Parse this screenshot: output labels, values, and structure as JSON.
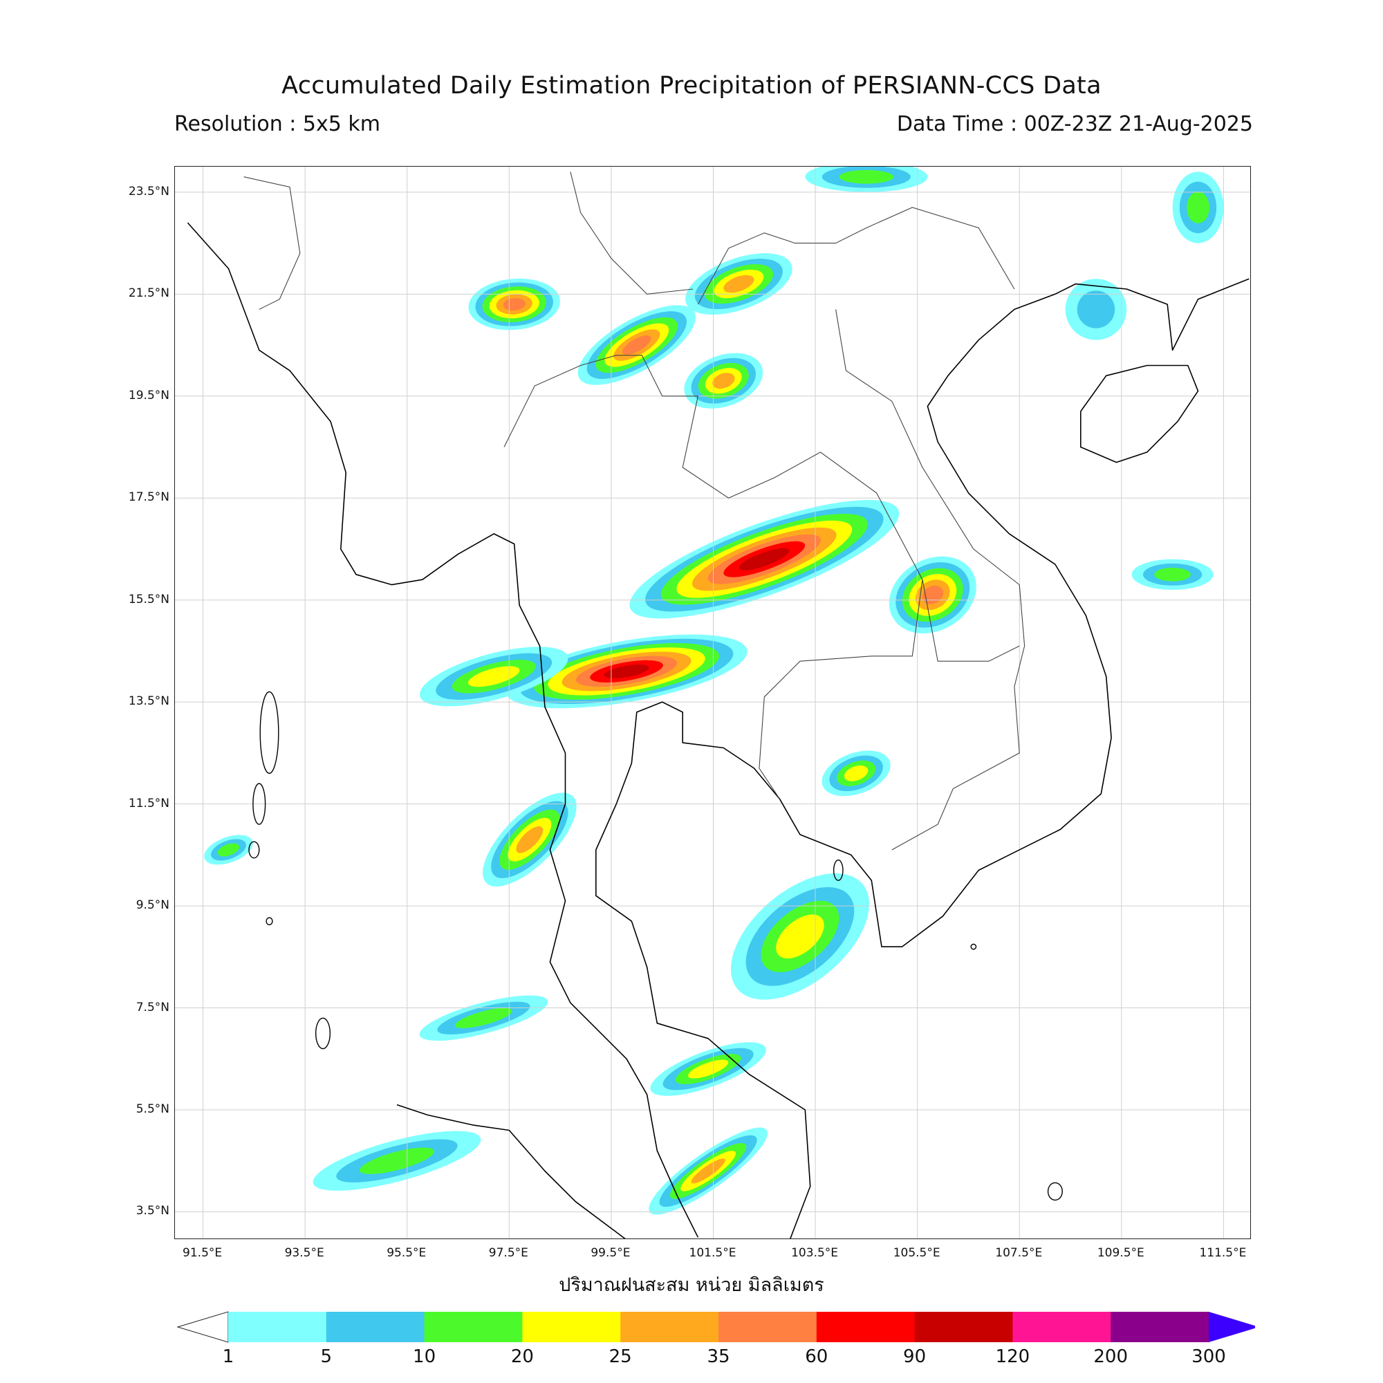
{
  "title": "Accumulated Daily Estimation Precipitation of PERSIANN-CCS Data",
  "resolution": "Resolution : 5x5 km",
  "data_time": "Data Time : 00Z-23Z 21-Aug-2025",
  "unit_label": "ปริมาณฝนสะสม หน่วย มิลลิเมตร",
  "map": {
    "lon_range": [
      90.95,
      112.05
    ],
    "lat_range": [
      2.95,
      24.0
    ],
    "lat_ticks": [
      {
        "value": 23.5,
        "label": "23.5°N"
      },
      {
        "value": 21.5,
        "label": "21.5°N"
      },
      {
        "value": 19.5,
        "label": "19.5°N"
      },
      {
        "value": 17.5,
        "label": "17.5°N"
      },
      {
        "value": 15.5,
        "label": "15.5°N"
      },
      {
        "value": 13.5,
        "label": "13.5°N"
      },
      {
        "value": 11.5,
        "label": "11.5°N"
      },
      {
        "value": 9.5,
        "label": "9.5°N"
      },
      {
        "value": 7.5,
        "label": "7.5°N"
      },
      {
        "value": 5.5,
        "label": "5.5°N"
      },
      {
        "value": 3.5,
        "label": "3.5°N"
      }
    ],
    "lon_ticks": [
      {
        "value": 91.5,
        "label": "91.5°E"
      },
      {
        "value": 93.5,
        "label": "93.5°E"
      },
      {
        "value": 95.5,
        "label": "95.5°E"
      },
      {
        "value": 97.5,
        "label": "97.5°E"
      },
      {
        "value": 99.5,
        "label": "99.5°E"
      },
      {
        "value": 101.5,
        "label": "101.5°E"
      },
      {
        "value": 103.5,
        "label": "103.5°E"
      },
      {
        "value": 105.5,
        "label": "105.5°E"
      },
      {
        "value": 107.5,
        "label": "107.5°E"
      },
      {
        "value": 109.5,
        "label": "109.5°E"
      },
      {
        "value": 111.5,
        "label": "111.5°E"
      }
    ],
    "gridlines": true
  },
  "colorbar": {
    "levels": [
      "1",
      "5",
      "10",
      "20",
      "25",
      "35",
      "60",
      "90",
      "120",
      "200",
      "300"
    ],
    "colors": [
      "#80ffff",
      "#40c8ee",
      "#4cfa2c",
      "#ffff00",
      "#ffa91f",
      "#ff8040",
      "#ff0000",
      "#c80000",
      "#ff1493",
      "#8b008b"
    ],
    "under_color": "#ffffff",
    "over_color": "#3c00ff"
  },
  "rain_areas": [
    {
      "name": "northeast-thailand-band",
      "lon": 102.5,
      "lat": 16.3,
      "rx": 2.8,
      "ry": 0.7,
      "rot": -20,
      "level": 8
    },
    {
      "name": "central-thailand-band",
      "lon": 99.8,
      "lat": 14.1,
      "rx": 2.4,
      "ry": 0.6,
      "rot": -10,
      "level": 8
    },
    {
      "name": "laos-south",
      "lon": 105.8,
      "lat": 15.6,
      "rx": 0.9,
      "ry": 0.7,
      "rot": -30,
      "level": 6
    },
    {
      "name": "myanmar-north-a",
      "lon": 100.0,
      "lat": 20.5,
      "rx": 1.3,
      "ry": 0.5,
      "rot": -30,
      "level": 6
    },
    {
      "name": "myanmar-north-b",
      "lon": 97.6,
      "lat": 21.3,
      "rx": 0.9,
      "ry": 0.5,
      "rot": -5,
      "level": 6
    },
    {
      "name": "laos-north",
      "lon": 102.0,
      "lat": 21.7,
      "rx": 1.1,
      "ry": 0.5,
      "rot": -20,
      "level": 5
    },
    {
      "name": "laos-north-b",
      "lon": 101.7,
      "lat": 19.8,
      "rx": 0.8,
      "ry": 0.5,
      "rot": -20,
      "level": 5
    },
    {
      "name": "gulf-thailand",
      "lon": 103.2,
      "lat": 8.9,
      "rx": 1.6,
      "ry": 0.9,
      "rot": -40,
      "level": 4
    },
    {
      "name": "andaman-west",
      "lon": 97.2,
      "lat": 14.0,
      "rx": 1.5,
      "ry": 0.45,
      "rot": -15,
      "level": 4
    },
    {
      "name": "myanmar-south-coast",
      "lon": 97.9,
      "lat": 10.8,
      "rx": 1.2,
      "ry": 0.5,
      "rot": -45,
      "level": 5
    },
    {
      "name": "cambodia-west",
      "lon": 104.3,
      "lat": 12.1,
      "rx": 0.7,
      "ry": 0.4,
      "rot": -20,
      "level": 4
    },
    {
      "name": "malaysia-east-coast",
      "lon": 101.4,
      "lat": 4.3,
      "rx": 1.4,
      "ry": 0.35,
      "rot": -35,
      "level": 5
    },
    {
      "name": "south-thailand-a",
      "lon": 101.4,
      "lat": 6.3,
      "rx": 1.2,
      "ry": 0.35,
      "rot": -20,
      "level": 4
    },
    {
      "name": "sea-south-west",
      "lon": 95.3,
      "lat": 4.5,
      "rx": 1.7,
      "ry": 0.4,
      "rot": -15,
      "level": 3
    },
    {
      "name": "hainan-east",
      "lon": 110.5,
      "lat": 16.0,
      "rx": 0.8,
      "ry": 0.3,
      "rot": 0,
      "level": 3
    },
    {
      "name": "china-northeast",
      "lon": 111.0,
      "lat": 23.2,
      "rx": 0.5,
      "ry": 0.7,
      "rot": 0,
      "level": 3
    },
    {
      "name": "china-top",
      "lon": 104.5,
      "lat": 23.8,
      "rx": 1.2,
      "ry": 0.3,
      "rot": 0,
      "level": 3
    },
    {
      "name": "bay-bengal-east",
      "lon": 92.0,
      "lat": 10.6,
      "rx": 0.5,
      "ry": 0.25,
      "rot": -20,
      "level": 3
    },
    {
      "name": "andaman-south",
      "lon": 97.0,
      "lat": 7.3,
      "rx": 1.3,
      "ry": 0.3,
      "rot": -15,
      "level": 3
    },
    {
      "name": "vietnam-north",
      "lon": 109.0,
      "lat": 21.2,
      "rx": 0.6,
      "ry": 0.6,
      "rot": 0,
      "level": 2
    }
  ],
  "coast_paths": [
    {
      "name": "indochina-coast",
      "points": [
        [
          91.2,
          22.9
        ],
        [
          92.0,
          22.0
        ],
        [
          92.3,
          21.2
        ],
        [
          92.6,
          20.4
        ],
        [
          93.2,
          20.0
        ],
        [
          94.0,
          19.0
        ],
        [
          94.3,
          18.0
        ],
        [
          94.2,
          16.5
        ],
        [
          94.5,
          16.0
        ],
        [
          95.2,
          15.8
        ],
        [
          95.8,
          15.9
        ],
        [
          96.5,
          16.4
        ],
        [
          97.2,
          16.8
        ],
        [
          97.6,
          16.6
        ],
        [
          97.7,
          15.4
        ],
        [
          98.1,
          14.6
        ],
        [
          98.2,
          13.4
        ],
        [
          98.6,
          12.5
        ],
        [
          98.6,
          11.5
        ],
        [
          98.3,
          10.6
        ],
        [
          98.6,
          9.6
        ],
        [
          98.3,
          8.4
        ],
        [
          98.7,
          7.6
        ],
        [
          99.3,
          7.0
        ],
        [
          99.8,
          6.5
        ],
        [
          100.2,
          5.8
        ],
        [
          100.4,
          4.7
        ],
        [
          100.8,
          3.8
        ],
        [
          101.2,
          3.0
        ]
      ]
    },
    {
      "name": "gulf-west-coast",
      "points": [
        [
          103.0,
          2.95
        ],
        [
          103.4,
          4.0
        ],
        [
          103.3,
          5.5
        ],
        [
          102.2,
          6.2
        ],
        [
          101.4,
          6.9
        ],
        [
          100.4,
          7.2
        ],
        [
          100.2,
          8.3
        ],
        [
          99.9,
          9.2
        ],
        [
          99.2,
          9.7
        ],
        [
          99.2,
          10.6
        ],
        [
          99.6,
          11.5
        ],
        [
          99.9,
          12.3
        ],
        [
          100.0,
          13.3
        ],
        [
          100.5,
          13.5
        ],
        [
          100.9,
          13.3
        ],
        [
          100.9,
          12.7
        ],
        [
          101.7,
          12.6
        ],
        [
          102.3,
          12.2
        ],
        [
          102.8,
          11.6
        ],
        [
          103.2,
          10.9
        ],
        [
          104.2,
          10.5
        ],
        [
          104.6,
          10.0
        ],
        [
          104.8,
          8.7
        ],
        [
          105.2,
          8.7
        ],
        [
          106.0,
          9.3
        ],
        [
          106.7,
          10.2
        ],
        [
          107.3,
          10.5
        ],
        [
          108.3,
          11.0
        ],
        [
          109.1,
          11.7
        ],
        [
          109.3,
          12.8
        ],
        [
          109.2,
          14.0
        ],
        [
          108.8,
          15.2
        ],
        [
          108.2,
          16.2
        ],
        [
          107.3,
          16.8
        ],
        [
          106.5,
          17.6
        ],
        [
          105.9,
          18.6
        ],
        [
          105.7,
          19.3
        ],
        [
          106.1,
          19.9
        ],
        [
          106.7,
          20.6
        ],
        [
          107.4,
          21.2
        ],
        [
          108.2,
          21.5
        ],
        [
          108.6,
          21.7
        ],
        [
          109.6,
          21.6
        ],
        [
          110.4,
          21.3
        ],
        [
          110.5,
          20.4
        ],
        [
          111.0,
          21.4
        ],
        [
          112.0,
          21.8
        ]
      ]
    },
    {
      "name": "hainan",
      "points": [
        [
          108.7,
          19.2
        ],
        [
          109.2,
          19.9
        ],
        [
          110.0,
          20.1
        ],
        [
          110.8,
          20.1
        ],
        [
          111.0,
          19.6
        ],
        [
          110.6,
          19.0
        ],
        [
          110.0,
          18.4
        ],
        [
          109.4,
          18.2
        ],
        [
          108.7,
          18.5
        ],
        [
          108.7,
          19.2
        ]
      ]
    },
    {
      "name": "sumatra-tip",
      "points": [
        [
          95.3,
          5.6
        ],
        [
          95.9,
          5.4
        ],
        [
          96.8,
          5.2
        ],
        [
          97.5,
          5.1
        ],
        [
          98.2,
          4.3
        ],
        [
          98.8,
          3.7
        ],
        [
          99.8,
          2.95
        ]
      ]
    }
  ],
  "border_paths": [
    {
      "name": "thailand-outline",
      "points": [
        [
          97.4,
          18.5
        ],
        [
          98.0,
          19.7
        ],
        [
          98.9,
          20.1
        ],
        [
          99.6,
          20.3
        ],
        [
          100.1,
          20.3
        ],
        [
          100.5,
          19.5
        ],
        [
          101.2,
          19.5
        ],
        [
          100.9,
          18.1
        ],
        [
          101.8,
          17.5
        ],
        [
          102.7,
          17.9
        ],
        [
          103.6,
          18.4
        ],
        [
          104.7,
          17.6
        ],
        [
          105.6,
          15.9
        ],
        [
          105.4,
          14.4
        ],
        [
          104.6,
          14.4
        ],
        [
          103.2,
          14.3
        ],
        [
          102.5,
          13.6
        ],
        [
          102.4,
          12.2
        ],
        [
          102.8,
          11.6
        ]
      ]
    },
    {
      "name": "laos-vietnam-border",
      "points": [
        [
          101.2,
          21.3
        ],
        [
          101.8,
          22.4
        ],
        [
          102.5,
          22.7
        ],
        [
          103.1,
          22.5
        ],
        [
          103.9,
          22.5
        ],
        [
          104.5,
          22.8
        ],
        [
          105.4,
          23.2
        ],
        [
          106.7,
          22.8
        ],
        [
          107.4,
          21.6
        ]
      ]
    },
    {
      "name": "laos-vietnam-inner",
      "points": [
        [
          103.9,
          21.2
        ],
        [
          104.1,
          20.0
        ],
        [
          105.0,
          19.4
        ],
        [
          105.6,
          18.1
        ],
        [
          106.6,
          16.5
        ],
        [
          107.5,
          15.8
        ],
        [
          107.6,
          14.6
        ],
        [
          107.4,
          13.8
        ],
        [
          107.5,
          12.5
        ],
        [
          106.2,
          11.8
        ],
        [
          105.9,
          11.1
        ],
        [
          105.0,
          10.6
        ]
      ]
    },
    {
      "name": "cambodia-laos-border",
      "points": [
        [
          105.6,
          15.9
        ],
        [
          105.9,
          14.3
        ],
        [
          106.9,
          14.3
        ],
        [
          107.5,
          14.6
        ]
      ]
    },
    {
      "name": "myanmar-india-border",
      "points": [
        [
          92.3,
          23.8
        ],
        [
          93.2,
          23.6
        ],
        [
          93.4,
          22.3
        ],
        [
          93.0,
          21.4
        ],
        [
          92.6,
          21.2
        ]
      ]
    },
    {
      "name": "myanmar-china-border",
      "points": [
        [
          98.7,
          23.9
        ],
        [
          98.9,
          23.1
        ],
        [
          99.5,
          22.2
        ],
        [
          100.2,
          21.5
        ],
        [
          101.1,
          21.6
        ]
      ]
    }
  ],
  "islands": [
    {
      "name": "andaman-north",
      "lon": 92.8,
      "lat": 12.9,
      "rx": 0.18,
      "ry": 0.8
    },
    {
      "name": "andaman-south",
      "lon": 92.6,
      "lat": 11.5,
      "rx": 0.12,
      "ry": 0.4
    },
    {
      "name": "little-andaman",
      "lon": 92.5,
      "lat": 10.6,
      "rx": 0.1,
      "ry": 0.16
    },
    {
      "name": "car-nicobar",
      "lon": 92.8,
      "lat": 9.2,
      "rx": 0.06,
      "ry": 0.07
    },
    {
      "name": "great-nicobar",
      "lon": 93.85,
      "lat": 7.0,
      "rx": 0.14,
      "ry": 0.3
    },
    {
      "name": "phu-quoc",
      "lon": 103.95,
      "lat": 10.2,
      "rx": 0.09,
      "ry": 0.2
    },
    {
      "name": "con-dao",
      "lon": 106.6,
      "lat": 8.7,
      "rx": 0.05,
      "ry": 0.05
    },
    {
      "name": "natuna",
      "lon": 108.2,
      "lat": 3.9,
      "rx": 0.14,
      "ry": 0.17
    }
  ]
}
